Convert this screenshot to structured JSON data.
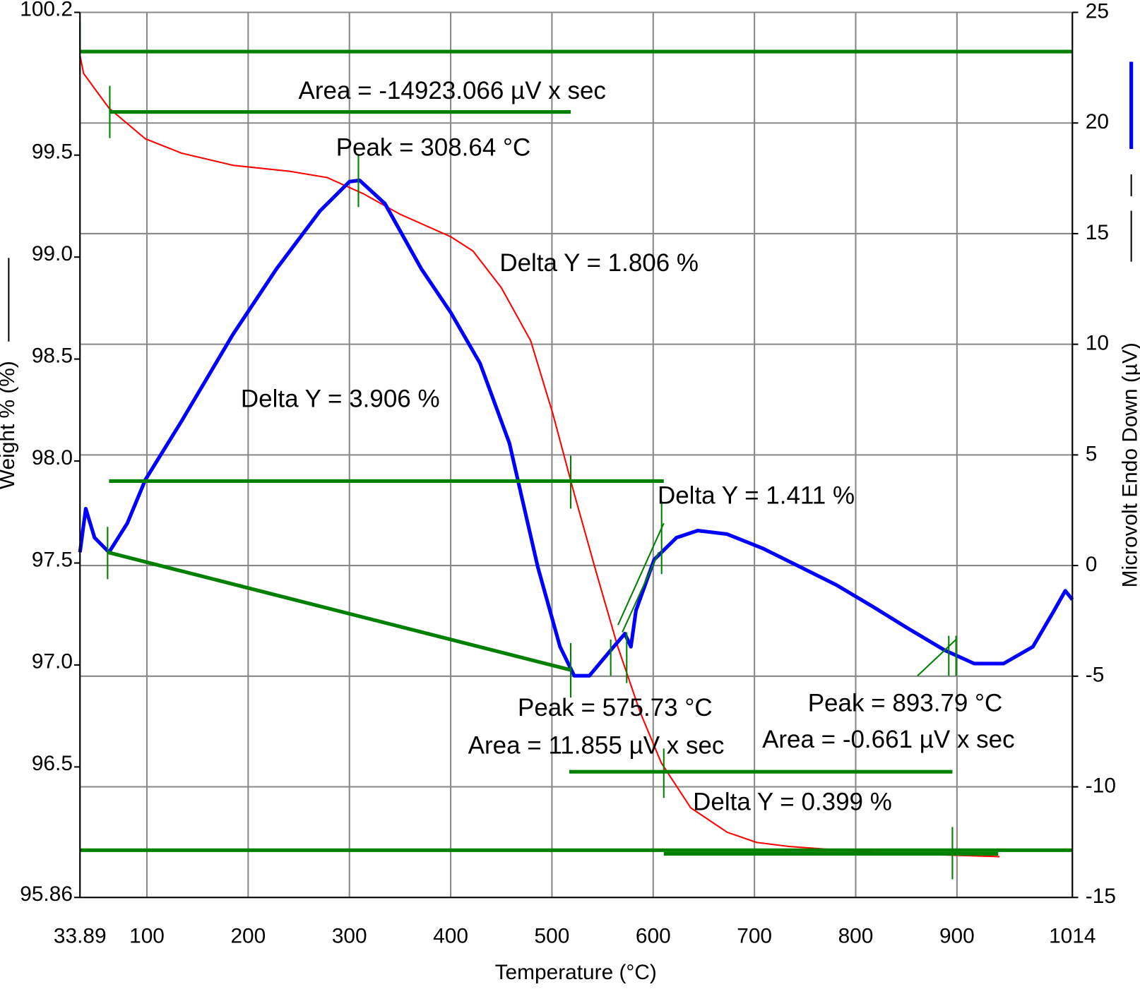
{
  "chart_data": {
    "type": "line",
    "xlabel": "Temperature (°C)",
    "ylabel": "Weight % (%)",
    "y2label": "Microvolt Endo Down (µV)",
    "xlim": [
      33.89,
      1014
    ],
    "xticks": [
      33.89,
      100,
      200,
      300,
      400,
      500,
      600,
      700,
      800,
      900,
      1014
    ],
    "ylim": [
      95.86,
      100.2
    ],
    "yticks": [
      95.86,
      96.5,
      {
        "value": 97,
        "label": "97.0"
      },
      97.5,
      {
        "value": 98,
        "label": "98.0"
      },
      98.5,
      {
        "value": 99,
        "label": "99.0"
      },
      99.5,
      100.2
    ],
    "y2lim": [
      -15,
      25
    ],
    "y2ticks": [
      -15,
      -10,
      -5,
      0,
      5,
      10,
      15,
      20,
      25
    ],
    "grid": true,
    "series": [
      {
        "color": "#ff0000",
        "x": [
          33.89,
          37.5,
          62.6,
          98.5,
          134,
          185,
          242,
          278,
          314,
          350,
          400,
          422,
          450,
          479,
          501,
          522,
          544,
          565,
          587,
          608,
          637,
          673,
          702,
          734,
          817,
          942
        ],
        "values": [
          99.99,
          99.9,
          99.73,
          99.58,
          99.51,
          99.45,
          99.42,
          99.39,
          99.31,
          99.21,
          99.1,
          99.03,
          98.85,
          98.59,
          98.23,
          97.84,
          97.45,
          97.09,
          96.77,
          96.52,
          96.3,
          96.18,
          96.13,
          96.11,
          96.08,
          96.06
        ]
      },
      {
        "color": "#0000ff",
        "axis": "y2",
        "x": [
          33.89,
          39.6,
          48.3,
          62.6,
          80.6,
          98.5,
          134,
          185,
          228,
          271,
          300,
          310,
          335,
          371,
          400,
          429,
          458,
          486,
          508,
          522,
          537,
          558,
          572,
          578,
          583,
          601,
          623,
          644,
          673,
          709,
          745,
          781,
          817,
          852,
          888,
          917,
          946,
          975,
          996,
          1007,
          1014
        ],
        "values": [
          0.6,
          2.57,
          1.26,
          0.6,
          1.91,
          3.88,
          6.51,
          10.45,
          13.41,
          16.03,
          17.35,
          17.41,
          16.36,
          13.41,
          11.44,
          9.14,
          5.53,
          -0.06,
          -3.67,
          -4.98,
          -4.98,
          -3.83,
          -3.08,
          -3.67,
          -2.03,
          0.27,
          1.26,
          1.58,
          1.42,
          0.76,
          -0.06,
          -0.88,
          -1.86,
          -2.85,
          -3.83,
          -4.43,
          -4.43,
          -3.67,
          -2.03,
          -1.14,
          -1.54
        ]
      }
    ],
    "annotations": [
      "Area = -14923.066 µV x sec",
      "Peak = 308.64 °C",
      "Delta Y = 1.806 %",
      "Delta Y = 3.906 %",
      "Delta Y = 1.411 %",
      "Peak = 575.73 °C",
      "Area = 11.855 µV x sec",
      "Peak = 893.79 °C",
      "Area = -0.661 µV x sec",
      "Delta Y = 0.399 %"
    ]
  }
}
